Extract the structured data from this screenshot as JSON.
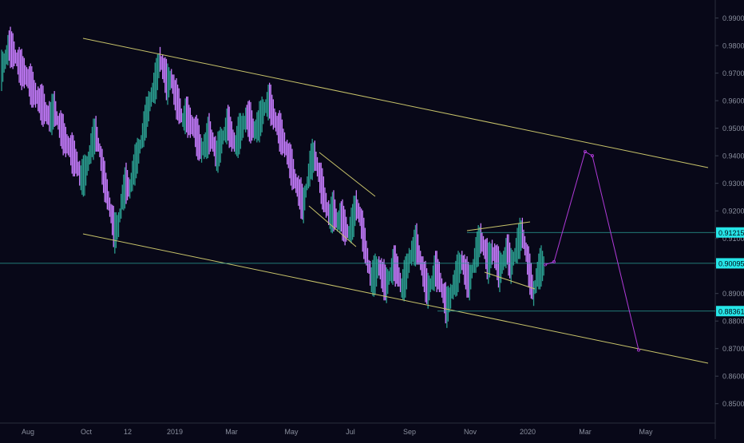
{
  "chart_data": {
    "type": "line",
    "series": [
      {
        "values": [
          [
            0.971,
            0.975,
            0.98,
            0.978,
            0.975,
            0.972,
            0.97,
            0.968,
            0.965,
            0.962,
            0.96,
            0.958,
            0.955,
            0.954,
            0.957,
            0.952,
            0.949,
            0.945,
            0.943,
            0.94,
            0.937,
            0.932,
            0.933,
            0.938,
            0.945,
            0.948,
            0.942,
            0.933,
            0.926,
            0.919,
            0.912,
            0.915,
            0.925,
            0.93,
            0.928,
            0.935,
            0.94,
            0.945,
            0.952,
            0.958,
            0.963,
            0.968,
            0.975,
            0.971,
            0.966,
            0.968,
            0.962,
            0.958,
            0.953,
            0.955,
            0.952,
            0.95,
            0.946,
            0.942,
            0.944,
            0.948,
            0.945,
            0.94,
            0.944,
            0.948,
            0.952,
            0.947,
            0.944,
            0.948,
            0.951,
            0.954,
            0.952,
            0.949,
            0.951,
            0.955,
            0.958,
            0.96,
            0.955,
            0.951,
            0.948,
            0.944,
            0.94,
            0.935,
            0.93,
            0.926,
            0.922,
            0.93,
            0.938,
            0.94,
            0.934,
            0.928,
            0.922,
            0.918,
            0.92,
            0.916,
            0.918,
            0.914,
            0.912,
            0.916,
            0.922,
            0.918,
            0.91,
            0.902,
            0.895,
            0.897,
            0.9,
            0.896,
            0.893,
            0.897,
            0.901,
            0.898,
            0.892,
            0.896,
            0.902,
            0.906,
            0.908,
            0.902,
            0.896,
            0.891,
            0.894,
            0.899,
            0.896,
            0.89,
            0.885,
            0.889,
            0.894,
            0.898,
            0.902,
            0.897,
            0.894,
            0.9,
            0.906,
            0.91,
            0.906,
            0.901,
            0.905,
            0.903,
            0.898,
            0.902,
            0.906,
            0.9,
            0.904,
            0.909,
            0.912,
            0.905,
            0.897,
            0.89,
            0.897,
            0.9
          ]
        ]
      }
    ],
    "yticks": [
      "0.99000",
      "0.98000",
      "0.97000",
      "0.96000",
      "0.95000",
      "0.94000",
      "0.93000",
      "0.92000",
      "0.91000",
      "0.90000",
      "0.89000",
      "0.88000",
      "0.87000",
      "0.86000",
      "0.85000"
    ],
    "xticks": [
      "Aug",
      "Oct",
      "12",
      "2019",
      "Mar",
      "May",
      "Jul",
      "Sep",
      "Nov",
      "2020",
      "Mar",
      "May"
    ],
    "price_labels": [
      {
        "value": 0.91215,
        "text": "0.91215"
      },
      {
        "value": 0.90095,
        "text": "0.90095"
      },
      {
        "value": 0.88361,
        "text": "0.88361"
      }
    ],
    "projection": [
      [
        0.9005,
        0.9005
      ],
      [
        0.9015,
        0.9415
      ],
      [
        0.94,
        0.8695
      ]
    ],
    "colors": {
      "background": "#080818",
      "candles": "#2a9d8f",
      "candles_down": "#c77dff",
      "trendline": "#c8c36a",
      "horizontal": "#2aa198",
      "projection": "#b03ad8",
      "axis_text": "#8a8f9e",
      "label_bg": "#26e6e8"
    }
  }
}
